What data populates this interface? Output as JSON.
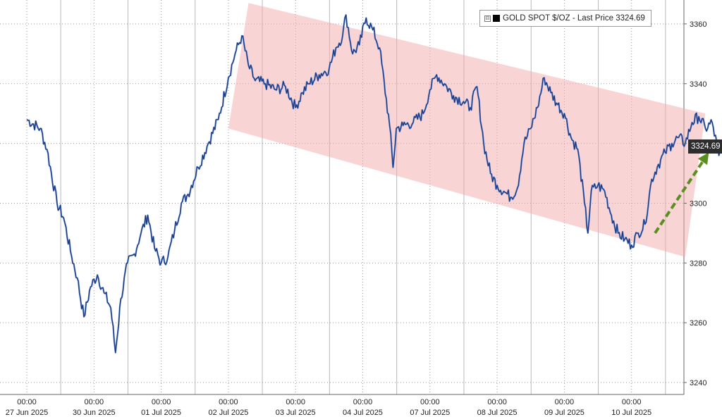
{
  "legend": {
    "label": "GOLD SPOT $/OZ - Last Price 3324.69",
    "toggle_symbol": "⊟"
  },
  "last_price_tag": "3324.69",
  "colors": {
    "price_line": "#1c2f6e",
    "price_fill_accent": "#4f7fd0",
    "channel": "#f3a9ab",
    "arrow": "#5a8f1f"
  },
  "chart_data": {
    "type": "line",
    "series": [
      {
        "name": "GOLD SPOT $/OZ",
        "points": [
          [
            0.0,
            3328
          ],
          [
            0.2,
            3325
          ],
          [
            0.3,
            3318
          ],
          [
            0.45,
            3300
          ],
          [
            0.55,
            3295
          ],
          [
            0.65,
            3284
          ],
          [
            0.75,
            3275
          ],
          [
            0.85,
            3262
          ],
          [
            0.95,
            3272
          ],
          [
            1.05,
            3276
          ],
          [
            1.15,
            3270
          ],
          [
            1.25,
            3265
          ],
          [
            1.32,
            3250
          ],
          [
            1.4,
            3268
          ],
          [
            1.5,
            3280
          ],
          [
            1.6,
            3283
          ],
          [
            1.7,
            3290
          ],
          [
            1.8,
            3296
          ],
          [
            1.9,
            3285
          ],
          [
            2.0,
            3280
          ],
          [
            2.1,
            3282
          ],
          [
            2.2,
            3291
          ],
          [
            2.3,
            3300
          ],
          [
            2.4,
            3303
          ],
          [
            2.55,
            3312
          ],
          [
            2.7,
            3320
          ],
          [
            2.85,
            3328
          ],
          [
            3.0,
            3342
          ],
          [
            3.1,
            3350
          ],
          [
            3.2,
            3356
          ],
          [
            3.3,
            3346
          ],
          [
            3.4,
            3341
          ],
          [
            3.55,
            3340
          ],
          [
            3.7,
            3338
          ],
          [
            3.85,
            3339
          ],
          [
            4.0,
            3332
          ],
          [
            4.1,
            3337
          ],
          [
            4.2,
            3340
          ],
          [
            4.35,
            3343
          ],
          [
            4.5,
            3345
          ],
          [
            4.6,
            3352
          ],
          [
            4.7,
            3356
          ],
          [
            4.75,
            3363
          ],
          [
            4.85,
            3350
          ],
          [
            4.95,
            3353
          ],
          [
            5.05,
            3362
          ],
          [
            5.15,
            3358
          ],
          [
            5.25,
            3352
          ],
          [
            5.4,
            3326
          ],
          [
            5.45,
            3312
          ],
          [
            5.5,
            3325
          ],
          [
            5.6,
            3326
          ],
          [
            5.75,
            3327
          ],
          [
            5.9,
            3330
          ],
          [
            6.0,
            3338
          ],
          [
            6.1,
            3343
          ],
          [
            6.25,
            3339
          ],
          [
            6.35,
            3336
          ],
          [
            6.5,
            3334
          ],
          [
            6.6,
            3332
          ],
          [
            6.7,
            3339
          ],
          [
            6.8,
            3320
          ],
          [
            6.9,
            3310
          ],
          [
            7.0,
            3306
          ],
          [
            7.1,
            3304
          ],
          [
            7.2,
            3302
          ],
          [
            7.3,
            3305
          ],
          [
            7.4,
            3320
          ],
          [
            7.5,
            3325
          ],
          [
            7.6,
            3332
          ],
          [
            7.7,
            3342
          ],
          [
            7.8,
            3337
          ],
          [
            7.9,
            3333
          ],
          [
            8.0,
            3330
          ],
          [
            8.1,
            3322
          ],
          [
            8.2,
            3318
          ],
          [
            8.3,
            3300
          ],
          [
            8.35,
            3290
          ],
          [
            8.4,
            3304
          ],
          [
            8.5,
            3306
          ],
          [
            8.6,
            3304
          ],
          [
            8.7,
            3296
          ],
          [
            8.8,
            3290
          ],
          [
            8.9,
            3288
          ],
          [
            9.0,
            3286
          ],
          [
            9.1,
            3290
          ],
          [
            9.2,
            3293
          ],
          [
            9.3,
            3308
          ],
          [
            9.4,
            3313
          ],
          [
            9.5,
            3317
          ],
          [
            9.6,
            3320
          ],
          [
            9.7,
            3322
          ],
          [
            9.8,
            3320
          ],
          [
            9.9,
            3327
          ],
          [
            10.0,
            3329
          ],
          [
            10.1,
            3325
          ],
          [
            10.2,
            3327
          ],
          [
            10.3,
            3316
          ],
          [
            10.4,
            3318
          ],
          [
            10.5,
            3321
          ],
          [
            10.55,
            3324.69
          ]
        ]
      }
    ],
    "x_tick_times": [
      "00:00",
      "00:00",
      "00:00",
      "00:00",
      "00:00",
      "00:00",
      "00:00",
      "00:00",
      "00:00",
      "00:00"
    ],
    "x_tick_dates": [
      "27 Jun 2025",
      "30 Jun 2025",
      "01 Jul 2025",
      "02 Jul 2025",
      "03 Jul 2025",
      "04 Jul 2025",
      "07 Jul 2025",
      "08 Jul 2025",
      "09 Jul 2025",
      "10 Jul 2025"
    ],
    "y_ticks": [
      3240,
      3260,
      3280,
      3300,
      3320,
      3340,
      3360
    ],
    "ylim": [
      3236,
      3368
    ],
    "xlim": [
      0,
      10.8
    ],
    "grid": true,
    "legend_position": "top-right",
    "annotations": {
      "descending_channel": {
        "upper": [
          [
            3.3,
            3367
          ],
          [
            10.1,
            3330
          ]
        ],
        "lower": [
          [
            3.0,
            3325
          ],
          [
            9.8,
            3282
          ]
        ]
      },
      "uptrend_arrow": {
        "from": [
          9.35,
          3290
        ],
        "to": [
          10.15,
          3317
        ]
      }
    },
    "last_value": 3324.69
  }
}
